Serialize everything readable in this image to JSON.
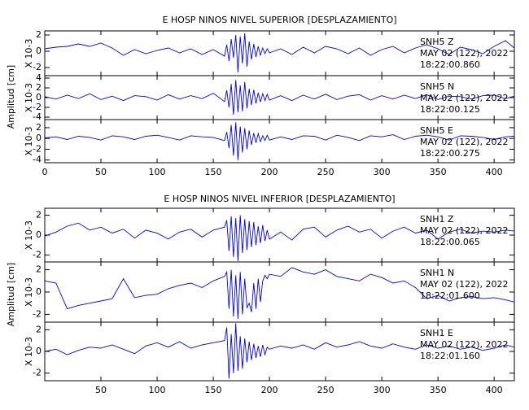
{
  "chart_data": [
    {
      "type": "line",
      "title": "E HOSP NINOS NIVEL SUPERIOR [DESPLAZAMIENTO]",
      "ylabel": "Amplitud [cm]",
      "xlim": [
        0,
        418
      ],
      "xticks": [
        0,
        50,
        100,
        150,
        200,
        250,
        300,
        350,
        400
      ],
      "x": [
        0,
        10,
        20,
        30,
        40,
        50,
        60,
        70,
        80,
        90,
        100,
        110,
        120,
        130,
        140,
        150,
        160,
        162,
        164,
        166,
        168,
        170,
        172,
        174,
        176,
        178,
        180,
        182,
        184,
        186,
        188,
        190,
        192,
        194,
        196,
        198,
        200,
        210,
        220,
        230,
        240,
        250,
        260,
        270,
        280,
        290,
        300,
        310,
        320,
        330,
        340,
        350,
        360,
        370,
        380,
        390,
        400,
        410,
        418
      ],
      "panels": [
        {
          "scale_label": "X 10-3",
          "ylim": [
            -3,
            2.5
          ],
          "yticks": [
            -2,
            0,
            2
          ],
          "color": "#0000ff",
          "annotation": [
            "SNH5   Z",
            "MAY 02 (122), 2022",
            "18:22:00.860"
          ],
          "values": [
            0.3,
            0.5,
            0.6,
            0.9,
            0.6,
            1.0,
            0.4,
            -0.5,
            0.2,
            -0.3,
            0.1,
            0.4,
            -0.2,
            0.3,
            -0.4,
            0.2,
            -0.6,
            0.8,
            -1.2,
            1.5,
            -0.8,
            2.0,
            -2.6,
            1.8,
            -1.5,
            2.2,
            -1.9,
            1.2,
            -1.0,
            0.9,
            -0.7,
            0.6,
            -0.5,
            0.4,
            -0.3,
            0.3,
            -0.2,
            0.3,
            -0.4,
            0.5,
            -0.2,
            0.6,
            0.3,
            -0.3,
            0.4,
            -0.5,
            0.2,
            0.6,
            -0.2,
            0.4,
            0.8,
            0.3,
            -0.4,
            0.5,
            0.2,
            -0.3,
            0.6,
            1.3,
            0.4
          ]
        },
        {
          "scale_label": "X 10-3",
          "ylim": [
            -4.5,
            4.5
          ],
          "yticks": [
            -4,
            -2,
            0,
            2,
            4
          ],
          "color": "#0000ff",
          "annotation": [
            "SNH5   N",
            "MAY 02 (122), 2022",
            "18:22:00.125"
          ],
          "values": [
            0.2,
            -0.3,
            0.5,
            -0.2,
            0.8,
            -0.4,
            0.3,
            -0.6,
            0.4,
            0.2,
            -0.5,
            0.6,
            -0.3,
            0.4,
            -0.2,
            0.9,
            -0.8,
            1.5,
            -2.0,
            2.8,
            -3.5,
            3.6,
            -3.0,
            2.5,
            -2.8,
            3.2,
            -2.2,
            1.8,
            -1.5,
            1.6,
            -1.2,
            1.0,
            -0.9,
            0.8,
            -0.6,
            0.7,
            -0.5,
            0.4,
            -0.6,
            0.5,
            -0.3,
            0.7,
            -0.4,
            0.3,
            0.6,
            -0.5,
            0.4,
            -0.3,
            0.5,
            -0.2,
            0.6,
            -0.4,
            0.3,
            0.2,
            -0.3,
            0.4,
            0.5,
            -0.2,
            0.3
          ]
        },
        {
          "scale_label": "X 10-3",
          "ylim": [
            -4.5,
            3.5
          ],
          "yticks": [
            -4,
            -2,
            0,
            2
          ],
          "color": "#0000ff",
          "annotation": [
            "SNH5   E",
            "MAY 02 (122), 2022",
            "18:22:00.275"
          ],
          "values": [
            0.1,
            0.3,
            -0.2,
            0.4,
            0.2,
            -0.3,
            0.5,
            0.3,
            -0.2,
            0.4,
            0.6,
            0.2,
            -0.3,
            0.5,
            0.3,
            0.2,
            -0.4,
            1.2,
            -1.8,
            2.5,
            -3.2,
            3.0,
            -4.0,
            2.2,
            -2.6,
            1.9,
            -2.0,
            1.5,
            -1.2,
            1.0,
            -0.8,
            0.9,
            -0.6,
            0.5,
            -0.4,
            0.6,
            -0.3,
            0.3,
            -0.2,
            0.5,
            0.4,
            -0.3,
            0.6,
            0.2,
            -0.4,
            0.5,
            0.3,
            0.7,
            -0.2,
            0.4,
            0.6,
            0.3,
            -0.3,
            0.5,
            0.4,
            0.2,
            -0.2,
            0.3,
            0.4
          ]
        }
      ]
    },
    {
      "type": "line",
      "title": "E HOSP NINOS NIVEL INFERIOR [DESPLAZAMIENTO]",
      "ylabel": "Amplitud [cm]",
      "xlim": [
        0,
        418
      ],
      "xticks": [
        50,
        100,
        150,
        200,
        250,
        300,
        350,
        400
      ],
      "x": [
        0,
        10,
        20,
        30,
        40,
        50,
        60,
        70,
        80,
        90,
        100,
        110,
        120,
        130,
        140,
        150,
        160,
        162,
        164,
        166,
        168,
        170,
        172,
        174,
        176,
        178,
        180,
        182,
        184,
        186,
        188,
        190,
        192,
        194,
        196,
        198,
        200,
        210,
        220,
        230,
        240,
        250,
        260,
        270,
        280,
        290,
        300,
        310,
        320,
        330,
        340,
        350,
        360,
        370,
        380,
        390,
        400,
        410,
        418
      ],
      "panels": [
        {
          "scale_label": "X 10-3",
          "ylim": [
            -2.7,
            2.7
          ],
          "yticks": [
            -2,
            0,
            2
          ],
          "color": "#0000ff",
          "annotation": [
            "SNH1   Z",
            "MAY 02 (122), 2022",
            "18:22:00.065"
          ],
          "values": [
            -0.1,
            0.3,
            0.9,
            1.2,
            0.5,
            0.8,
            0.2,
            0.6,
            -0.3,
            0.5,
            0.2,
            -0.4,
            0.3,
            0.6,
            -0.2,
            0.5,
            0.8,
            1.5,
            -1.6,
            1.9,
            -2.2,
            1.7,
            -2.6,
            2.0,
            -1.8,
            1.6,
            -1.5,
            1.4,
            -1.2,
            1.3,
            -1.0,
            0.9,
            -0.8,
            1.0,
            -0.6,
            0.5,
            -0.4,
            0.3,
            -0.5,
            0.6,
            0.8,
            -0.2,
            0.5,
            0.9,
            0.3,
            0.6,
            -0.3,
            0.4,
            0.8,
            0.2,
            0.5,
            -0.4,
            0.3,
            0.6,
            0.2,
            0.4,
            0.3,
            0.5,
            0.4
          ]
        },
        {
          "scale_label": "X 10-3",
          "ylim": [
            -2.7,
            2.7
          ],
          "yticks": [
            -2,
            0,
            2
          ],
          "color": "#0000ff",
          "annotation": [
            "SNH1   N",
            "MAY 02 (122), 2022",
            "18:22:01.600"
          ],
          "values": [
            1.0,
            0.8,
            -1.5,
            -1.2,
            -1.0,
            -0.8,
            -0.6,
            1.2,
            -0.5,
            -0.3,
            -0.2,
            0.3,
            0.6,
            0.8,
            0.4,
            1.0,
            1.4,
            1.8,
            -1.5,
            2.0,
            -2.2,
            1.5,
            -2.4,
            1.8,
            -2.0,
            1.2,
            -1.4,
            -1.0,
            -1.8,
            0.8,
            -1.5,
            1.2,
            -0.9,
            1.0,
            1.5,
            1.2,
            1.6,
            1.4,
            2.2,
            1.8,
            1.6,
            2.0,
            1.4,
            1.2,
            1.0,
            1.6,
            1.3,
            0.8,
            1.0,
            0.4,
            -0.6,
            -0.3,
            -0.8,
            -0.5,
            -0.4,
            -0.6,
            -0.5,
            -0.7,
            -0.9
          ]
        },
        {
          "scale_label": "X 10-3",
          "ylim": [
            -2.7,
            2.7
          ],
          "yticks": [
            -2,
            0,
            2
          ],
          "color": "#0000ff",
          "annotation": [
            "SNH1   E",
            "MAY 02 (122), 2022",
            "18:22:01.160"
          ],
          "values": [
            0.0,
            0.2,
            -0.3,
            0.1,
            0.4,
            0.3,
            0.6,
            0.2,
            -0.2,
            0.5,
            0.8,
            0.4,
            0.9,
            0.3,
            0.6,
            0.8,
            1.0,
            2.2,
            -2.5,
            1.6,
            -2.0,
            2.6,
            -1.8,
            1.4,
            -1.6,
            1.2,
            -1.0,
            0.9,
            -0.8,
            0.7,
            -0.6,
            0.5,
            -0.5,
            0.6,
            -0.3,
            0.4,
            0.2,
            0.5,
            0.3,
            0.6,
            0.2,
            0.8,
            0.4,
            0.6,
            0.9,
            0.5,
            0.3,
            0.7,
            0.4,
            0.2,
            0.6,
            0.3,
            0.5,
            0.2,
            0.4,
            0.1,
            0.3,
            0.6,
            0.4
          ]
        }
      ]
    }
  ]
}
